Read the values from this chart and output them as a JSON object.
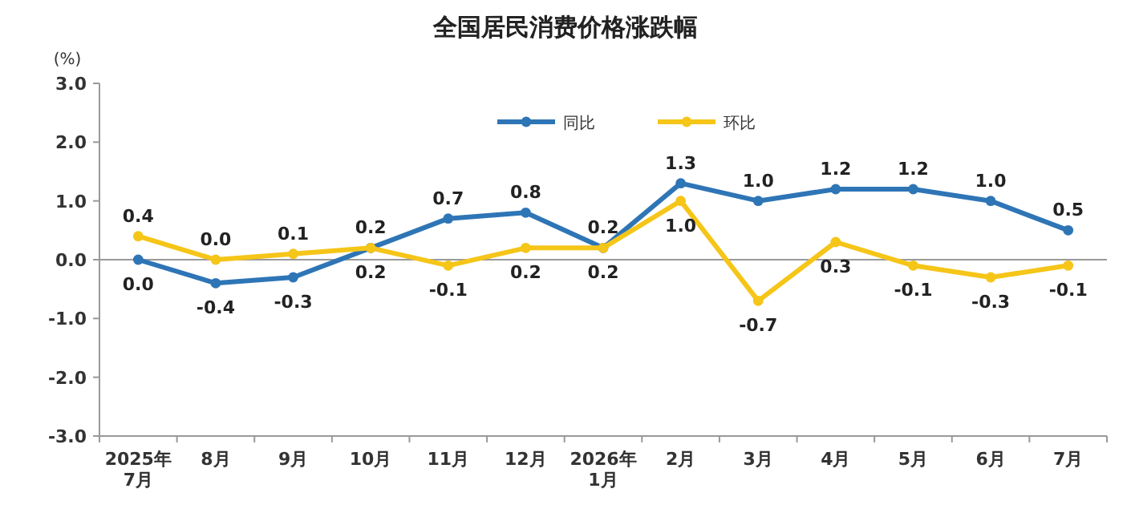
{
  "chart_data": {
    "type": "line",
    "title": "全国居民消费价格涨跌幅",
    "ylabel": "(%)",
    "categories": [
      "2025年\n7月",
      "8月",
      "9月",
      "10月",
      "11月",
      "12月",
      "2026年\n1月",
      "2月",
      "3月",
      "4月",
      "5月",
      "6月",
      "7月"
    ],
    "series": [
      {
        "name": "同比",
        "color": "#2e75b6",
        "values": [
          0.0,
          -0.4,
          -0.3,
          0.2,
          0.7,
          0.8,
          0.2,
          1.3,
          1.0,
          1.2,
          1.2,
          1.0,
          0.5
        ],
        "value_labels": [
          "0.0",
          "-0.4",
          "-0.3",
          "0.2",
          "0.7",
          "0.8",
          "0.2",
          "1.3",
          "1.0",
          "1.2",
          "1.2",
          "1.0",
          "0.5"
        ]
      },
      {
        "name": "环比",
        "color": "#f5c518",
        "values": [
          0.4,
          0.0,
          0.1,
          0.2,
          -0.1,
          0.2,
          0.2,
          1.0,
          -0.7,
          0.3,
          -0.1,
          -0.3,
          -0.1
        ],
        "value_labels": [
          "0.4",
          "0.0",
          "0.1",
          "0.2",
          "-0.1",
          "0.2",
          "0.2",
          "1.0",
          "-0.7",
          "0.3",
          "-0.1",
          "-0.3",
          "-0.1"
        ]
      }
    ],
    "ylim": [
      -3,
      3
    ],
    "yticks": [
      {
        "value": 3,
        "label": "3.0"
      },
      {
        "value": 2,
        "label": "2.0"
      },
      {
        "value": 1,
        "label": "1.0"
      },
      {
        "value": 0,
        "label": "0.0"
      },
      {
        "value": -1,
        "label": "-1.0"
      },
      {
        "value": -2,
        "label": "-2.0"
      },
      {
        "value": -3,
        "label": "-3.0"
      }
    ],
    "legend": "top",
    "marker": "circle",
    "line_style": "solid"
  }
}
